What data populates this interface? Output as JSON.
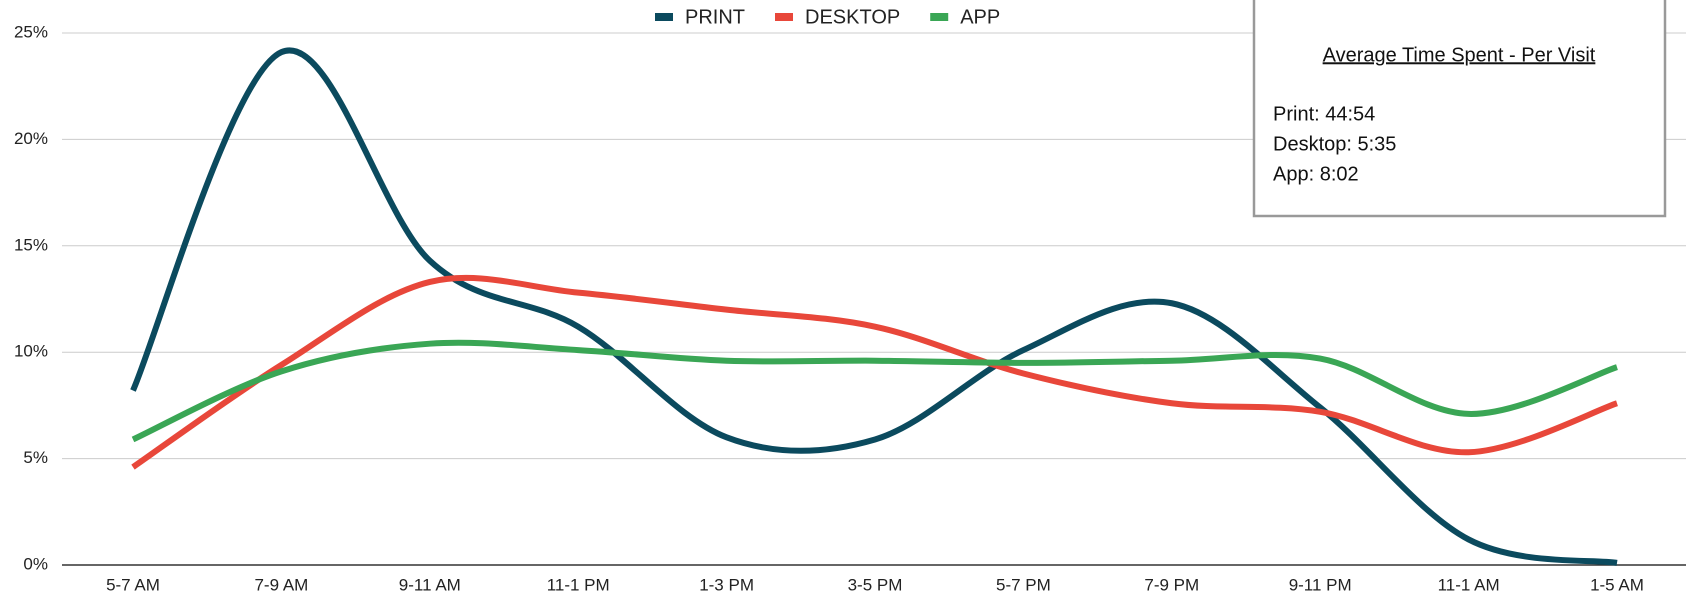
{
  "chart_data": {
    "type": "line",
    "categories": [
      "5-7 AM",
      "7-9 AM",
      "9-11 AM",
      "11-1 PM",
      "1-3 PM",
      "3-5 PM",
      "5-7 PM",
      "7-9 PM",
      "9-11 PM",
      "11-1 AM",
      "1-5 AM"
    ],
    "series": [
      {
        "name": "PRINT",
        "color": "#0b4a5e",
        "values": [
          8.2,
          24.1,
          14.3,
          11.2,
          6.0,
          5.9,
          10.1,
          12.3,
          7.4,
          1.2,
          0.1
        ]
      },
      {
        "name": "DESKTOP",
        "color": "#e8473a",
        "values": [
          4.6,
          9.4,
          13.3,
          12.8,
          12.0,
          11.2,
          9.0,
          7.6,
          7.2,
          5.3,
          7.6
        ]
      },
      {
        "name": "APP",
        "color": "#3aa655",
        "values": [
          5.9,
          9.1,
          10.4,
          10.1,
          9.6,
          9.6,
          9.5,
          9.6,
          9.7,
          7.1,
          9.3
        ]
      }
    ],
    "ylim": [
      0,
      25
    ],
    "yticks": [
      {
        "value": 0,
        "label": "0%"
      },
      {
        "value": 5,
        "label": "5%"
      },
      {
        "value": 10,
        "label": "10%"
      },
      {
        "value": 15,
        "label": "15%"
      },
      {
        "value": 20,
        "label": "20%"
      },
      {
        "value": 25,
        "label": "25%"
      }
    ],
    "grid": true,
    "legend": "top",
    "annotation": {
      "title": "Average Time Spent - Per Visit",
      "lines": [
        "Print: 44:54",
        "Desktop: 5:35",
        "App: 8:02"
      ]
    }
  }
}
